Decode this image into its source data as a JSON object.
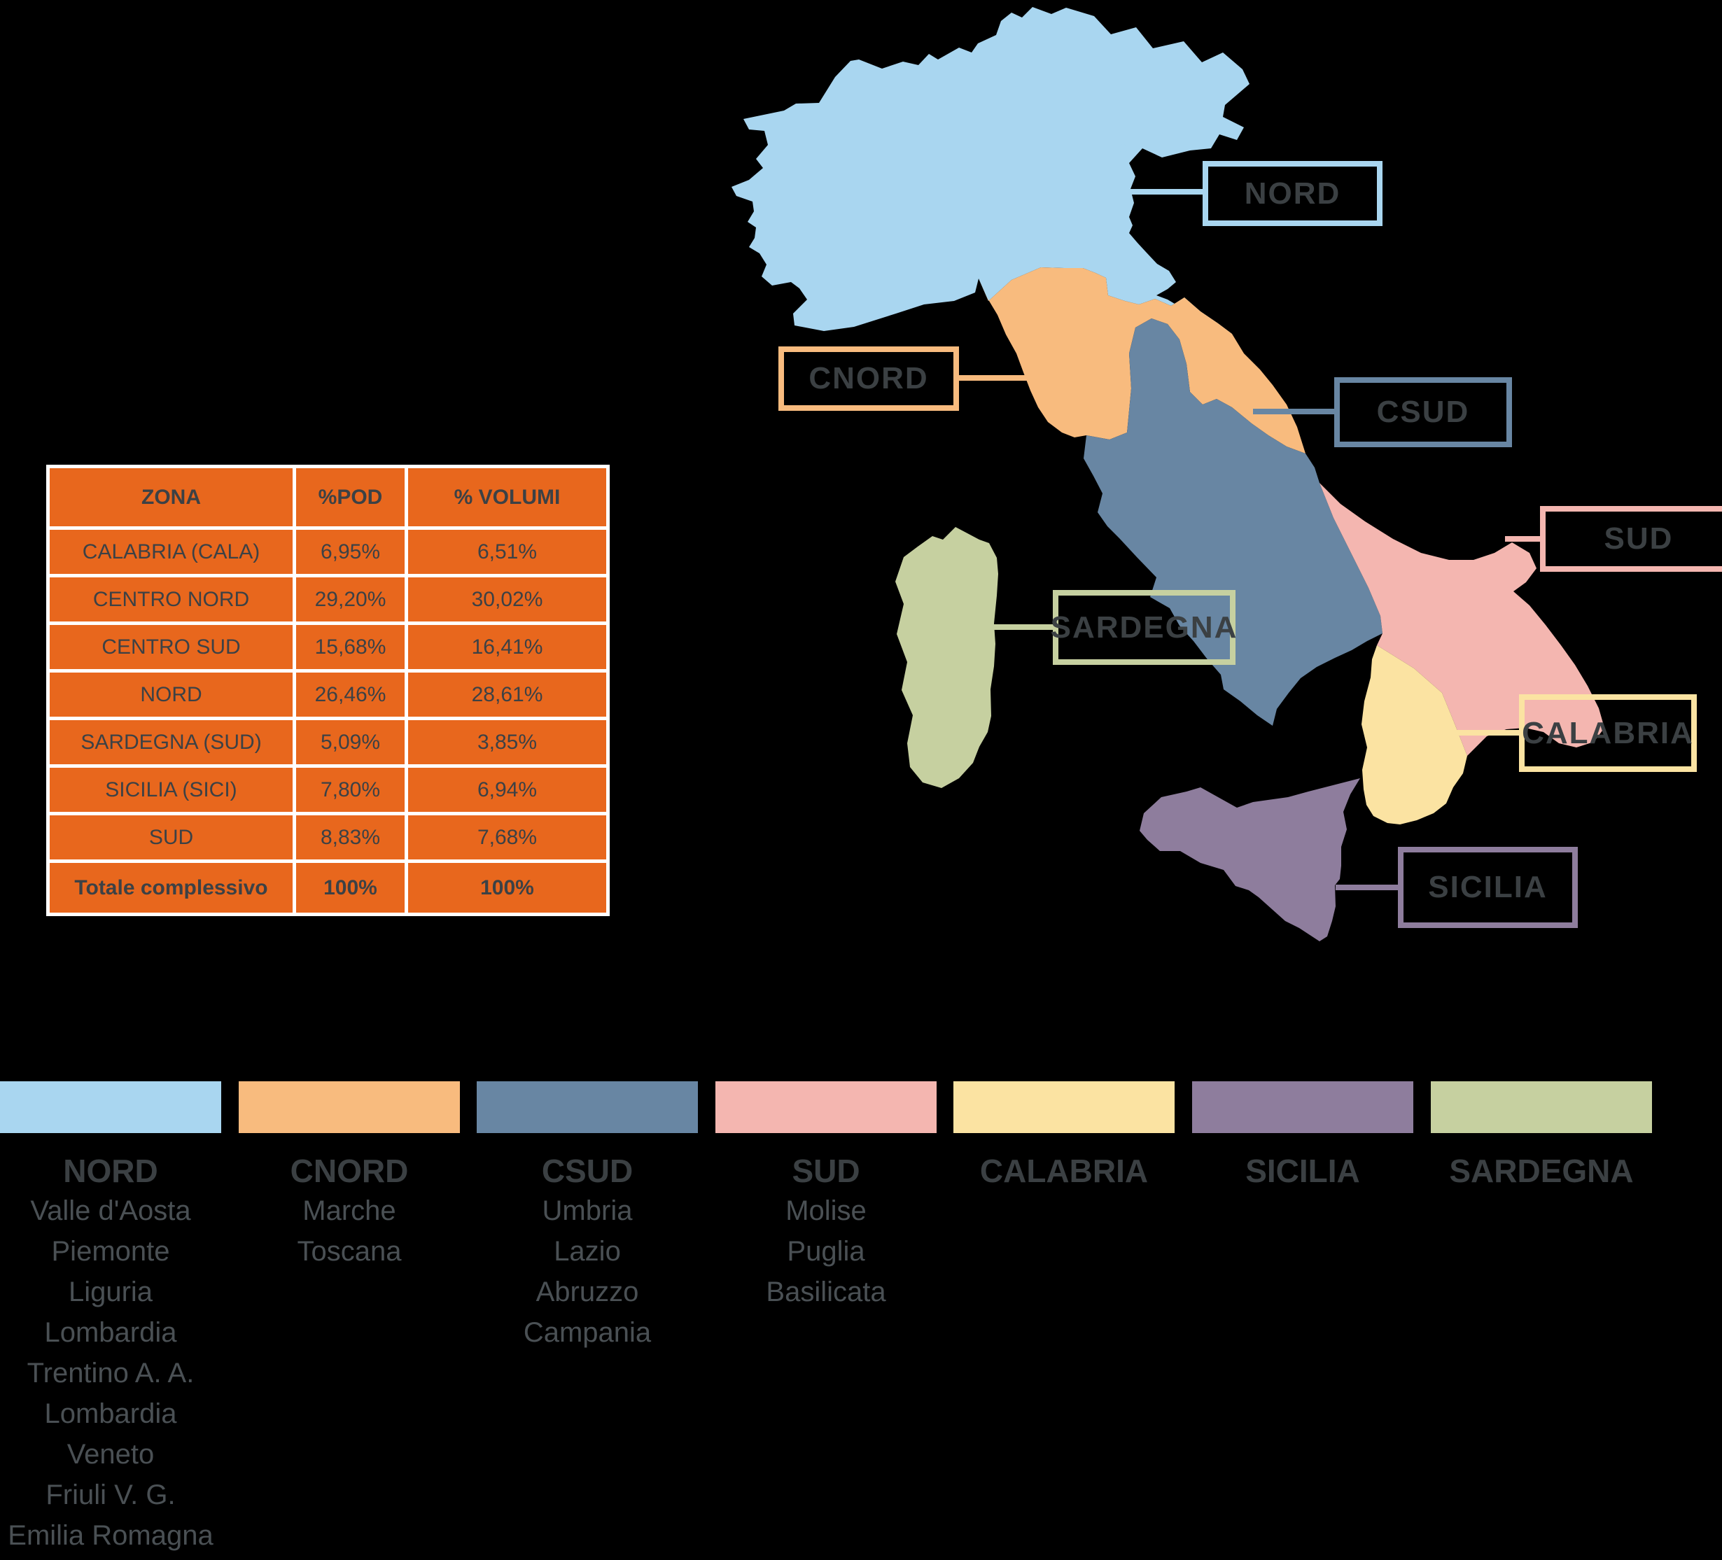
{
  "colors": {
    "background": "#000000",
    "table_fill": "#E8671D",
    "table_border": "#FFFFFF",
    "text_dark": "#3C4145",
    "text_secondary": "#4A5054",
    "zones": {
      "nord": "#A9D6F0",
      "cnord": "#F8BB7E",
      "csud": "#6886A3",
      "sud": "#F4B6B0",
      "calabria": "#FBE3A2",
      "sicilia": "#8E7D9D",
      "sardegna": "#C6D0A0"
    }
  },
  "table": {
    "headers": [
      "ZONA",
      "%POD",
      "% VOLUMI"
    ],
    "rows": [
      [
        "CALABRIA (CALA)",
        "6,95%",
        "6,51%"
      ],
      [
        "CENTRO NORD",
        "29,20%",
        "30,02%"
      ],
      [
        "CENTRO SUD",
        "15,68%",
        "16,41%"
      ],
      [
        "NORD",
        "26,46%",
        "28,61%"
      ],
      [
        "SARDEGNA (SUD)",
        "5,09%",
        "3,85%"
      ],
      [
        "SICILIA (SICI)",
        "7,80%",
        "6,94%"
      ],
      [
        "SUD",
        "8,83%",
        "7,68%"
      ]
    ],
    "total_row": [
      "Totale complessivo",
      "100%",
      "100%"
    ]
  },
  "map": {
    "labels": [
      {
        "id": "nord",
        "text": "NORD"
      },
      {
        "id": "cnord",
        "text": "CNORD"
      },
      {
        "id": "csud",
        "text": "CSUD"
      },
      {
        "id": "sud",
        "text": "SUD"
      },
      {
        "id": "sardegna",
        "text": "SARDEGNA"
      },
      {
        "id": "calabria",
        "text": "CALABRIA"
      },
      {
        "id": "sicilia",
        "text": "SICILIA"
      }
    ]
  },
  "legend": {
    "columns": [
      {
        "id": "nord",
        "title": "NORD",
        "regions": [
          "Valle d'Aosta",
          "Piemonte",
          "Liguria",
          "Lombardia",
          "Trentino A. A.",
          "Lombardia",
          "Veneto",
          "Friuli V. G.",
          "Emilia Romagna"
        ]
      },
      {
        "id": "cnord",
        "title": "CNORD",
        "regions": [
          "Marche",
          "Toscana"
        ]
      },
      {
        "id": "csud",
        "title": "CSUD",
        "regions": [
          "Umbria",
          "Lazio",
          "Abruzzo",
          "Campania"
        ]
      },
      {
        "id": "sud",
        "title": "SUD",
        "regions": [
          "Molise",
          "Puglia",
          "Basilicata"
        ]
      },
      {
        "id": "calabria",
        "title": "CALABRIA",
        "regions": []
      },
      {
        "id": "sicilia",
        "title": "SICILIA",
        "regions": []
      },
      {
        "id": "sardegna",
        "title": "SARDEGNA",
        "regions": []
      }
    ]
  }
}
